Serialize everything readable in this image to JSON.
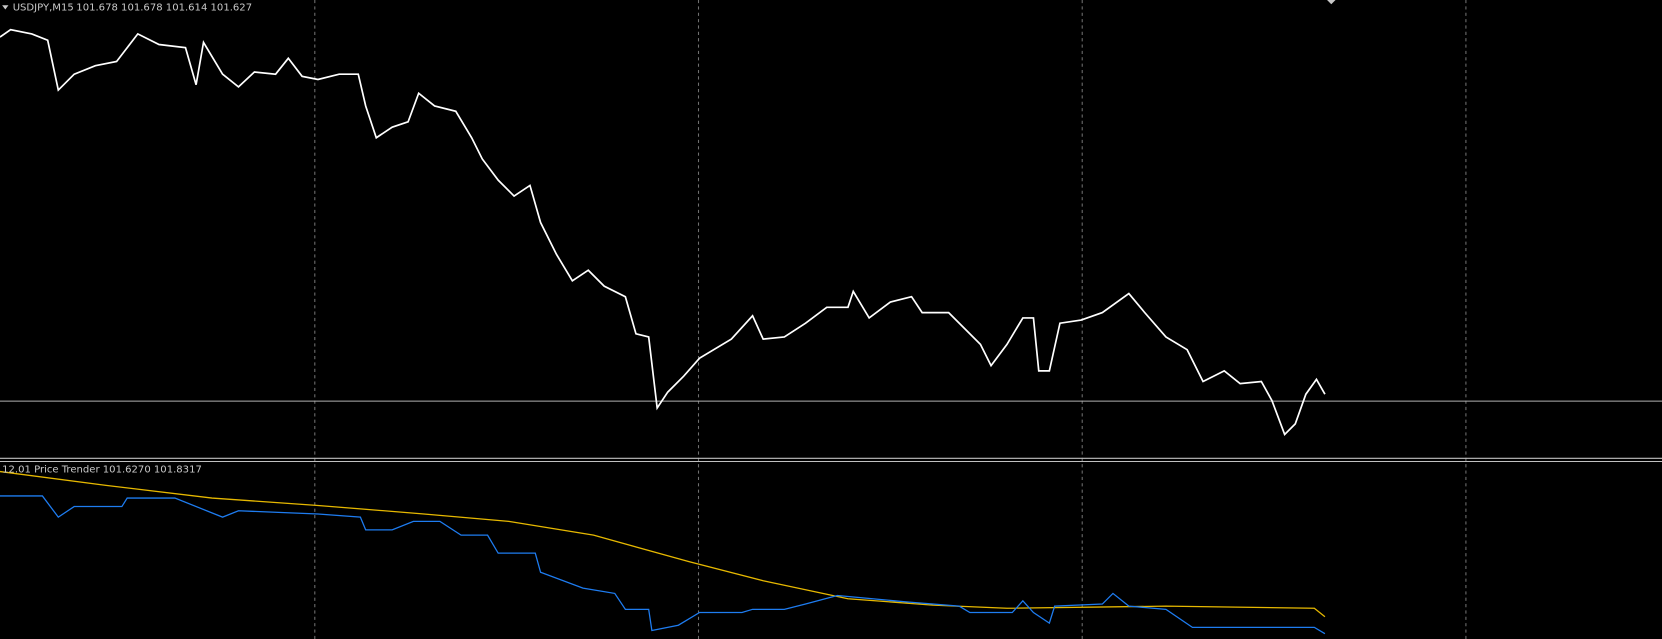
{
  "header": {
    "symbol": "USDJPY,M15",
    "ohlc": "101.678 101.678 101.614 101.627"
  },
  "indicator": {
    "label": "12.01 Price Trender 101.6270 101.8317"
  }
}
